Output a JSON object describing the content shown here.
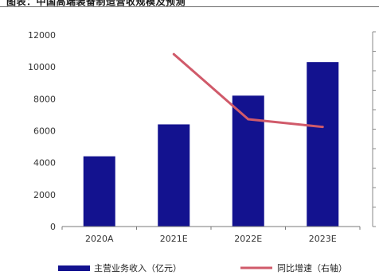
{
  "header": {
    "title": "图表：中国高端装备制造营收规模及预测"
  },
  "chart_data": {
    "type": "bar",
    "categories": [
      "2020A",
      "2021E",
      "2022E",
      "2023E"
    ],
    "ylim": [
      0,
      12000
    ],
    "yticks": [
      0,
      2000,
      4000,
      6000,
      8000,
      10000,
      12000
    ],
    "series": [
      {
        "name": "主营业务收入（亿元）",
        "type": "bar",
        "axis": "left",
        "values": [
          4400,
          6400,
          8200,
          10300
        ],
        "color": "#13128f"
      },
      {
        "name": "同比增速（右轴）",
        "type": "line",
        "axis": "right",
        "values": [
          null,
          45,
          28,
          26
        ],
        "color": "#d05a6a"
      }
    ],
    "y2lim": [
      0,
      50
    ],
    "grid": false,
    "legend": "bottom"
  }
}
